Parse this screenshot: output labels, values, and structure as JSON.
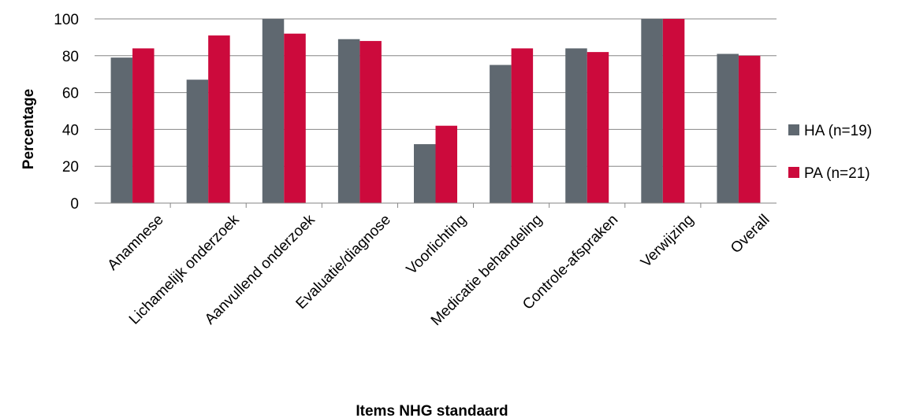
{
  "chart_data": {
    "type": "bar",
    "title": "",
    "xlabel": "Items NHG standaard",
    "ylabel": "Percentage",
    "ylim": [
      0,
      100
    ],
    "yticks": [
      0,
      20,
      40,
      60,
      80,
      100
    ],
    "grid": true,
    "legend_position": "right",
    "categories": [
      "Anamnese",
      "Lichamelijk onderzoek",
      "Aanvullend onderzoek",
      "Evaluatie/diagnose",
      "Voorlichting",
      "Medicatie behandeling",
      "Controle-afspraken",
      "Verwijzing",
      "Overall"
    ],
    "series": [
      {
        "name": "HA (n=19)",
        "color": "#5f6870",
        "values": [
          79,
          67,
          100,
          89,
          32,
          75,
          84,
          100,
          81
        ]
      },
      {
        "name": "PA (n=21)",
        "color": "#cc0a3c",
        "values": [
          84,
          91,
          92,
          88,
          42,
          84,
          82,
          100,
          80
        ]
      }
    ]
  }
}
